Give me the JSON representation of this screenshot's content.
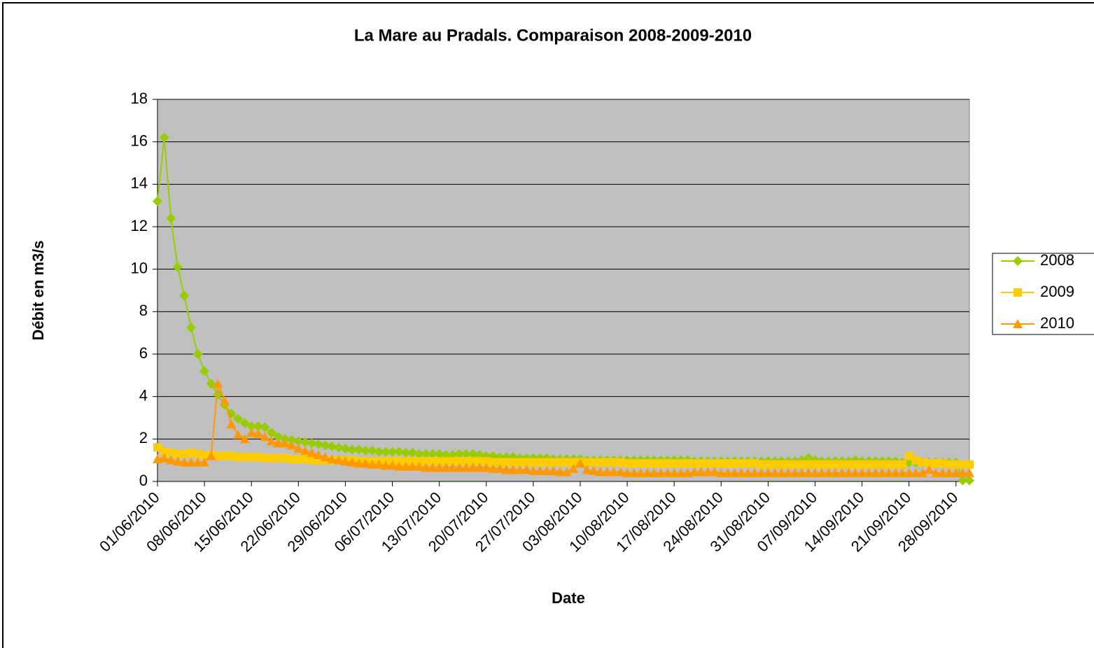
{
  "chart_data": {
    "type": "line",
    "title": "La Mare au Pradals. Comparaison 2008-2009-2010",
    "x_label": "Date",
    "y_label": "Débit en m3/s",
    "categories": [
      "01/06/2010",
      null,
      null,
      null,
      null,
      null,
      null,
      "08/06/2010",
      null,
      null,
      null,
      null,
      null,
      null,
      "15/06/2010",
      null,
      null,
      null,
      null,
      null,
      null,
      "22/06/2010",
      null,
      null,
      null,
      null,
      null,
      null,
      "29/06/2010",
      null,
      null,
      null,
      null,
      null,
      null,
      "06/07/2010",
      null,
      null,
      null,
      null,
      null,
      null,
      "13/07/2010",
      null,
      null,
      null,
      null,
      null,
      null,
      "20/07/2010",
      null,
      null,
      null,
      null,
      null,
      null,
      "27/07/2010",
      null,
      null,
      null,
      null,
      null,
      null,
      "03/08/2010",
      null,
      null,
      null,
      null,
      null,
      null,
      "10/08/2010",
      null,
      null,
      null,
      null,
      null,
      null,
      "17/08/2010",
      null,
      null,
      null,
      null,
      null,
      null,
      "24/08/2010",
      null,
      null,
      null,
      null,
      null,
      null,
      "31/08/2010",
      null,
      null,
      null,
      null,
      null,
      null,
      "07/09/2010",
      null,
      null,
      null,
      null,
      null,
      null,
      "14/09/2010",
      null,
      null,
      null,
      null,
      null,
      null,
      "21/09/2010",
      null,
      null,
      null,
      null,
      null,
      null,
      "28/09/2010",
      null,
      null
    ],
    "series": [
      {
        "name": "2008",
        "color": "#99cc00",
        "marker": "diamond",
        "values": [
          13.2,
          16.2,
          12.4,
          10.1,
          8.75,
          7.25,
          6.0,
          5.2,
          4.6,
          4.1,
          3.6,
          3.2,
          2.95,
          2.75,
          2.6,
          2.6,
          2.55,
          2.3,
          2.1,
          2.0,
          1.95,
          1.9,
          1.85,
          1.8,
          1.75,
          1.7,
          1.65,
          1.6,
          1.55,
          1.5,
          1.5,
          1.45,
          1.45,
          1.4,
          1.4,
          1.4,
          1.4,
          1.35,
          1.35,
          1.3,
          1.3,
          1.3,
          1.3,
          1.25,
          1.25,
          1.3,
          1.3,
          1.3,
          1.25,
          1.2,
          1.2,
          1.15,
          1.15,
          1.15,
          1.1,
          1.1,
          1.1,
          1.1,
          1.1,
          1.05,
          1.05,
          1.05,
          1.05,
          1.05,
          1.0,
          1.0,
          1.0,
          1.0,
          1.0,
          1.0,
          1.0,
          1.0,
          1.0,
          1.0,
          1.0,
          1.0,
          1.0,
          1.0,
          1.0,
          1.0,
          0.95,
          0.95,
          0.95,
          0.95,
          0.95,
          0.95,
          0.95,
          0.95,
          0.95,
          0.95,
          0.95,
          0.95,
          0.95,
          0.95,
          0.95,
          0.95,
          1.0,
          1.1,
          1.0,
          0.95,
          0.95,
          0.95,
          0.95,
          0.95,
          1.0,
          0.95,
          0.95,
          0.95,
          0.95,
          0.95,
          0.95,
          0.9,
          0.9,
          0.9,
          0.9,
          0.9,
          0.9,
          0.9,
          0.9,
          0.9,
          0.05,
          0.05
        ]
      },
      {
        "name": "2009",
        "color": "#ffcc00",
        "marker": "square",
        "values": [
          1.6,
          1.4,
          1.35,
          1.3,
          1.3,
          1.35,
          1.3,
          1.25,
          1.25,
          1.2,
          1.2,
          1.2,
          1.15,
          1.15,
          1.15,
          1.15,
          1.1,
          1.1,
          1.1,
          1.1,
          1.05,
          1.05,
          1.05,
          1.0,
          1.0,
          1.0,
          1.0,
          1.0,
          1.0,
          1.0,
          0.95,
          0.95,
          0.95,
          0.95,
          0.95,
          0.95,
          0.95,
          0.95,
          0.95,
          0.95,
          0.95,
          0.95,
          0.95,
          0.95,
          0.95,
          0.95,
          0.95,
          0.95,
          0.95,
          0.95,
          0.9,
          0.9,
          0.9,
          0.9,
          0.9,
          0.9,
          0.9,
          0.9,
          0.9,
          0.9,
          0.9,
          0.9,
          0.9,
          0.9,
          0.9,
          0.9,
          0.9,
          0.9,
          0.9,
          0.9,
          0.85,
          0.85,
          0.85,
          0.85,
          0.85,
          0.85,
          0.85,
          0.85,
          0.85,
          0.85,
          0.85,
          0.85,
          0.85,
          0.85,
          0.85,
          0.85,
          0.85,
          0.85,
          0.85,
          0.85,
          0.8,
          0.8,
          0.8,
          0.8,
          0.8,
          0.8,
          0.8,
          0.8,
          0.8,
          0.8,
          0.8,
          0.8,
          0.8,
          0.8,
          0.8,
          0.8,
          0.8,
          0.8,
          0.8,
          0.8,
          0.8,
          0.8,
          1.2,
          1.0,
          0.9,
          0.85,
          0.85,
          0.85,
          0.8,
          0.8,
          0.8,
          0.8
        ]
      },
      {
        "name": "2010",
        "color": "#ff9900",
        "marker": "triangle",
        "values": [
          1.05,
          1.1,
          1.0,
          0.95,
          0.9,
          0.9,
          0.9,
          0.9,
          1.2,
          4.6,
          3.8,
          2.7,
          2.2,
          2.0,
          2.3,
          2.25,
          2.1,
          1.9,
          1.8,
          1.8,
          1.7,
          1.55,
          1.45,
          1.35,
          1.25,
          1.15,
          1.05,
          1.0,
          0.95,
          0.9,
          0.85,
          0.85,
          0.8,
          0.8,
          0.75,
          0.75,
          0.7,
          0.7,
          0.7,
          0.7,
          0.65,
          0.65,
          0.65,
          0.65,
          0.65,
          0.65,
          0.65,
          0.65,
          0.65,
          0.65,
          0.6,
          0.6,
          0.55,
          0.55,
          0.55,
          0.55,
          0.5,
          0.5,
          0.5,
          0.5,
          0.45,
          0.45,
          0.6,
          0.85,
          0.55,
          0.5,
          0.45,
          0.45,
          0.45,
          0.45,
          0.4,
          0.4,
          0.4,
          0.4,
          0.4,
          0.4,
          0.4,
          0.4,
          0.4,
          0.4,
          0.45,
          0.45,
          0.45,
          0.45,
          0.4,
          0.4,
          0.4,
          0.4,
          0.4,
          0.4,
          0.4,
          0.4,
          0.4,
          0.4,
          0.4,
          0.4,
          0.4,
          0.4,
          0.4,
          0.4,
          0.4,
          0.4,
          0.4,
          0.4,
          0.4,
          0.4,
          0.4,
          0.4,
          0.4,
          0.4,
          0.4,
          0.4,
          0.4,
          0.4,
          0.4,
          0.55,
          0.4,
          0.4,
          0.4,
          0.4,
          0.4,
          0.4
        ]
      }
    ],
    "ylim": [
      0,
      18
    ],
    "yticks": [
      0,
      2,
      4,
      6,
      8,
      10,
      12,
      14,
      16,
      18
    ],
    "grid": true,
    "legend": "right"
  }
}
